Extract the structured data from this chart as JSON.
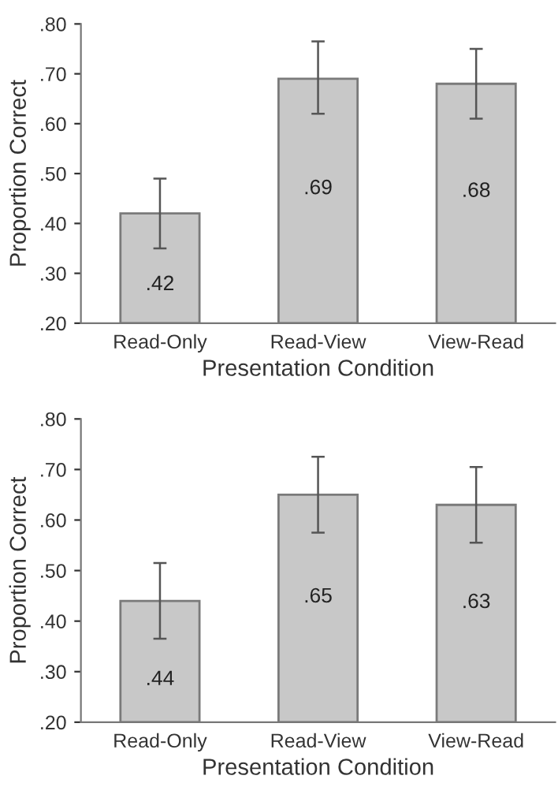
{
  "chart_data": [
    {
      "type": "bar",
      "xlabel": "Presentation Condition",
      "ylabel": "Proportion Correct",
      "categories": [
        "Read-Only",
        "Read-View",
        "View-Read"
      ],
      "values": [
        0.42,
        0.69,
        0.68
      ],
      "value_labels": [
        ".42",
        ".69",
        ".68"
      ],
      "errors": [
        [
          0.35,
          0.49
        ],
        [
          0.62,
          0.765
        ],
        [
          0.61,
          0.75
        ]
      ],
      "color": "#c8c8c8",
      "ylim": [
        0.2,
        0.8
      ],
      "yticks": [
        {
          "value": 0.2,
          "label": ".20"
        },
        {
          "value": 0.3,
          "label": ".30"
        },
        {
          "value": 0.4,
          "label": ".40"
        },
        {
          "value": 0.5,
          "label": ".50"
        },
        {
          "value": 0.6,
          "label": ".60"
        },
        {
          "value": 0.7,
          "label": ".70"
        },
        {
          "value": 0.8,
          "label": ".80"
        }
      ],
      "grid": false,
      "legend": false
    },
    {
      "type": "bar",
      "xlabel": "Presentation Condition",
      "ylabel": "Proportion Correct",
      "categories": [
        "Read-Only",
        "Read-View",
        "View-Read"
      ],
      "values": [
        0.44,
        0.65,
        0.63
      ],
      "value_labels": [
        ".44",
        ".65",
        ".63"
      ],
      "errors": [
        [
          0.365,
          0.515
        ],
        [
          0.575,
          0.725
        ],
        [
          0.555,
          0.705
        ]
      ],
      "color": "#c8c8c8",
      "ylim": [
        0.2,
        0.8
      ],
      "yticks": [
        {
          "value": 0.2,
          "label": ".20"
        },
        {
          "value": 0.3,
          "label": ".30"
        },
        {
          "value": 0.4,
          "label": ".40"
        },
        {
          "value": 0.5,
          "label": ".50"
        },
        {
          "value": 0.6,
          "label": ".60"
        },
        {
          "value": 0.7,
          "label": ".70"
        },
        {
          "value": 0.8,
          "label": ".80"
        }
      ],
      "grid": false,
      "legend": false
    }
  ]
}
